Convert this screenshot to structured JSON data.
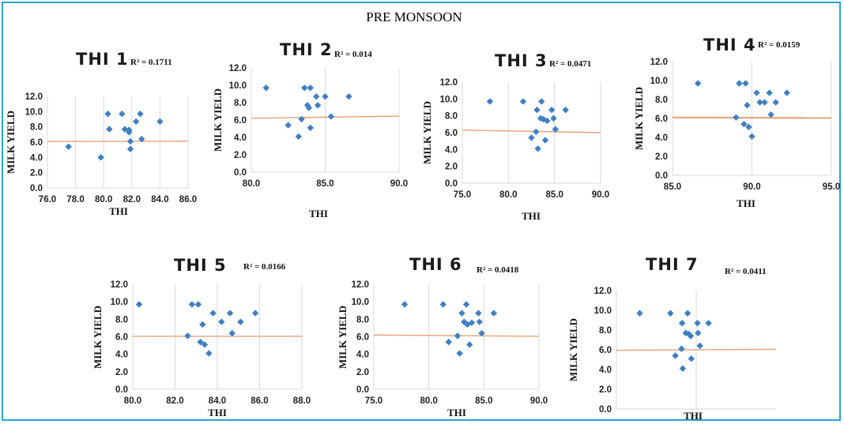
{
  "page": {
    "title": "PRE MONSOON"
  },
  "style": {
    "point_color": "#3f7fc4",
    "trend_color": "#e8a27a",
    "frame_color": "#29a3d6"
  },
  "chart_data": [
    {
      "type": "scatter",
      "title": "THI 1",
      "r2_label": "R² = 0.1711",
      "xlabel": "THI",
      "ylabel": "MILK YIELD",
      "xlim": [
        76,
        86
      ],
      "ylim": [
        0,
        12
      ],
      "xticks": [
        "76.0",
        "78.0",
        "80.0",
        "82.0",
        "84.0",
        "86.0"
      ],
      "yticks": [
        "0.0",
        "2.0",
        "4.0",
        "6.0",
        "8.0",
        "10.0",
        "12.0"
      ],
      "points": [
        [
          77.5,
          5.4
        ],
        [
          79.8,
          4.0
        ],
        [
          80.3,
          9.7
        ],
        [
          80.4,
          7.7
        ],
        [
          81.3,
          9.7
        ],
        [
          81.5,
          7.7
        ],
        [
          81.8,
          7.6
        ],
        [
          81.8,
          7.3
        ],
        [
          81.9,
          6.1
        ],
        [
          81.9,
          5.1
        ],
        [
          82.3,
          8.7
        ],
        [
          82.6,
          9.7
        ],
        [
          82.7,
          6.4
        ],
        [
          84.0,
          8.7
        ]
      ],
      "trend": [
        [
          76,
          6.08
        ],
        [
          86,
          6.12
        ]
      ]
    },
    {
      "type": "scatter",
      "title": "THI 2",
      "r2_label": "R² = 0.014",
      "xlabel": "THI",
      "ylabel": "MILK YIELD",
      "xlim": [
        80,
        90
      ],
      "ylim": [
        0,
        12
      ],
      "xticks": [
        "80.0",
        "85.0",
        "90.0"
      ],
      "yticks": [
        "0.0",
        "2.0",
        "4.0",
        "6.0",
        "8.0",
        "10.0",
        "12.0"
      ],
      "points": [
        [
          81.0,
          9.7
        ],
        [
          82.5,
          5.4
        ],
        [
          83.2,
          4.1
        ],
        [
          83.4,
          6.1
        ],
        [
          83.6,
          9.7
        ],
        [
          83.8,
          7.7
        ],
        [
          83.9,
          7.4
        ],
        [
          84.0,
          9.7
        ],
        [
          84.0,
          5.1
        ],
        [
          84.4,
          8.7
        ],
        [
          84.5,
          7.7
        ],
        [
          85.0,
          8.7
        ],
        [
          85.4,
          6.4
        ],
        [
          86.6,
          8.7
        ]
      ],
      "trend": [
        [
          80,
          6.2
        ],
        [
          90,
          6.45
        ]
      ]
    },
    {
      "type": "scatter",
      "title": "THI 3",
      "r2_label": "R² = 0.0471",
      "xlabel": "THI",
      "ylabel": "MILK YIELD",
      "xlim": [
        75,
        90
      ],
      "ylim": [
        0,
        12
      ],
      "xticks": [
        "75.0",
        "80.0",
        "85.0",
        "90.0"
      ],
      "yticks": [
        "0.0",
        "2.0",
        "4.0",
        "6.0",
        "8.0",
        "10.0",
        "12.0"
      ],
      "points": [
        [
          78.0,
          9.7
        ],
        [
          81.6,
          9.7
        ],
        [
          82.5,
          5.4
        ],
        [
          83.0,
          6.1
        ],
        [
          83.1,
          8.7
        ],
        [
          83.2,
          4.1
        ],
        [
          83.5,
          7.7
        ],
        [
          83.6,
          9.7
        ],
        [
          83.8,
          7.6
        ],
        [
          84.0,
          5.1
        ],
        [
          84.2,
          7.4
        ],
        [
          84.7,
          8.7
        ],
        [
          84.9,
          7.7
        ],
        [
          85.1,
          6.4
        ],
        [
          86.2,
          8.7
        ]
      ],
      "trend": [
        [
          75,
          6.3
        ],
        [
          90,
          6.0
        ]
      ]
    },
    {
      "type": "scatter",
      "title": "THI 4",
      "r2_label": "R² = 0.0159",
      "xlabel": "THI",
      "ylabel": "MILK YIELD",
      "xlim": [
        85,
        95
      ],
      "ylim": [
        0,
        12
      ],
      "xticks": [
        "85.0",
        "90.0",
        "95.0"
      ],
      "yticks": [
        "0.0",
        "2.0",
        "4.0",
        "6.0",
        "8.0",
        "10.0",
        "12.0"
      ],
      "points": [
        [
          86.6,
          9.7
        ],
        [
          89.0,
          6.1
        ],
        [
          89.2,
          9.7
        ],
        [
          89.5,
          5.4
        ],
        [
          89.6,
          9.7
        ],
        [
          89.7,
          7.4
        ],
        [
          89.8,
          5.1
        ],
        [
          90.0,
          4.1
        ],
        [
          90.3,
          8.7
        ],
        [
          90.5,
          7.7
        ],
        [
          90.8,
          7.7
        ],
        [
          91.1,
          8.7
        ],
        [
          91.2,
          6.4
        ],
        [
          91.5,
          7.7
        ],
        [
          92.2,
          8.7
        ]
      ],
      "trend": [
        [
          85,
          6.1
        ],
        [
          95,
          6.05
        ]
      ]
    },
    {
      "type": "scatter",
      "title": "THI 5",
      "r2_label": "R² = 0.0166",
      "xlabel": "THI",
      "ylabel": "MILK YIELD",
      "xlim": [
        80,
        88
      ],
      "ylim": [
        0,
        12
      ],
      "xticks": [
        "80.0",
        "82.0",
        "84.0",
        "86.0",
        "88.0"
      ],
      "yticks": [
        "0.0",
        "2.0",
        "4.0",
        "6.0",
        "8.0",
        "10.0",
        "12.0"
      ],
      "points": [
        [
          80.3,
          9.7
        ],
        [
          82.6,
          6.1
        ],
        [
          82.8,
          9.7
        ],
        [
          83.1,
          9.7
        ],
        [
          83.2,
          5.4
        ],
        [
          83.3,
          7.4
        ],
        [
          83.4,
          5.1
        ],
        [
          83.6,
          4.1
        ],
        [
          83.8,
          8.7
        ],
        [
          84.2,
          7.7
        ],
        [
          84.6,
          8.7
        ],
        [
          84.7,
          6.4
        ],
        [
          85.1,
          7.7
        ],
        [
          85.8,
          8.7
        ]
      ],
      "trend": [
        [
          80,
          6.05
        ],
        [
          88,
          6.05
        ]
      ]
    },
    {
      "type": "scatter",
      "title": "THI 6",
      "r2_label": "R² = 0.0418",
      "xlabel": "THI",
      "ylabel": "MILK YIELD",
      "xlim": [
        75,
        90
      ],
      "ylim": [
        0,
        12
      ],
      "xticks": [
        "75.0",
        "80.0",
        "85.0",
        "90.0"
      ],
      "yticks": [
        "0.0",
        "2.0",
        "4.0",
        "6.0",
        "8.0",
        "10.0",
        "12.0"
      ],
      "points": [
        [
          77.8,
          9.7
        ],
        [
          81.3,
          9.7
        ],
        [
          81.8,
          5.4
        ],
        [
          82.6,
          6.1
        ],
        [
          82.8,
          4.1
        ],
        [
          83.0,
          8.7
        ],
        [
          83.2,
          7.7
        ],
        [
          83.4,
          9.7
        ],
        [
          83.5,
          7.4
        ],
        [
          83.7,
          5.1
        ],
        [
          83.9,
          7.6
        ],
        [
          84.5,
          8.7
        ],
        [
          84.6,
          7.7
        ],
        [
          84.8,
          6.4
        ],
        [
          85.9,
          8.7
        ]
      ],
      "trend": [
        [
          75,
          6.2
        ],
        [
          90,
          6.05
        ]
      ]
    },
    {
      "type": "scatter",
      "title": "THI 7",
      "r2_label": "R² = 0.0411",
      "xlabel": "THI",
      "ylabel": "MILK YIELD",
      "xlim": [
        74,
        100
      ],
      "ylim": [
        0,
        12
      ],
      "xticks": [],
      "yticks": [
        "0.0",
        "2.0",
        "4.0",
        "6.0",
        "8.0",
        "10.0",
        "12.0"
      ],
      "points": [
        [
          77.8,
          9.7
        ],
        [
          82.8,
          9.7
        ],
        [
          83.6,
          5.4
        ],
        [
          84.6,
          6.1
        ],
        [
          84.7,
          8.7
        ],
        [
          84.8,
          4.1
        ],
        [
          85.3,
          7.7
        ],
        [
          85.6,
          9.7
        ],
        [
          85.8,
          7.6
        ],
        [
          86.1,
          7.4
        ],
        [
          86.2,
          5.1
        ],
        [
          87.2,
          8.7
        ],
        [
          87.3,
          7.7
        ],
        [
          87.6,
          6.4
        ],
        [
          89.0,
          8.7
        ]
      ],
      "trend": [
        [
          74,
          5.95
        ],
        [
          100,
          6.05
        ]
      ]
    }
  ]
}
